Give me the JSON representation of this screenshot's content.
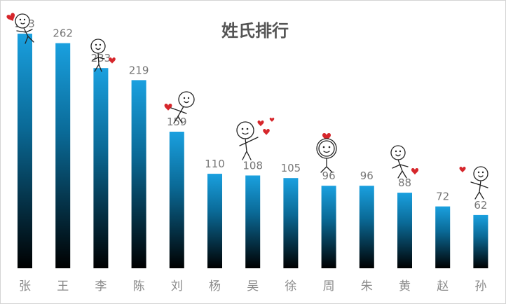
{
  "chart_data": {
    "type": "bar",
    "title": "姓氏排行",
    "categories": [
      "张",
      "王",
      "李",
      "陈",
      "刘",
      "杨",
      "吴",
      "徐",
      "周",
      "朱",
      "黄",
      "赵",
      "孙"
    ],
    "values": [
      273,
      262,
      233,
      219,
      159,
      110,
      108,
      105,
      96,
      96,
      88,
      72,
      62
    ],
    "xlabel": "",
    "ylabel": "",
    "ylim": [
      0,
      300
    ],
    "grid": false,
    "legend": "none",
    "bar_gradient": {
      "top": "#1aa0df",
      "bottom": "#000000"
    },
    "decorations": [
      "stick-figure-heart-icon",
      "stick-figure-heart-icon",
      "stick-figure-heart-icon",
      "stick-figure-heart-icon",
      "stick-figure-heart-icon",
      "stick-figure-heart-icon",
      "stick-figure-heart-icon"
    ]
  }
}
